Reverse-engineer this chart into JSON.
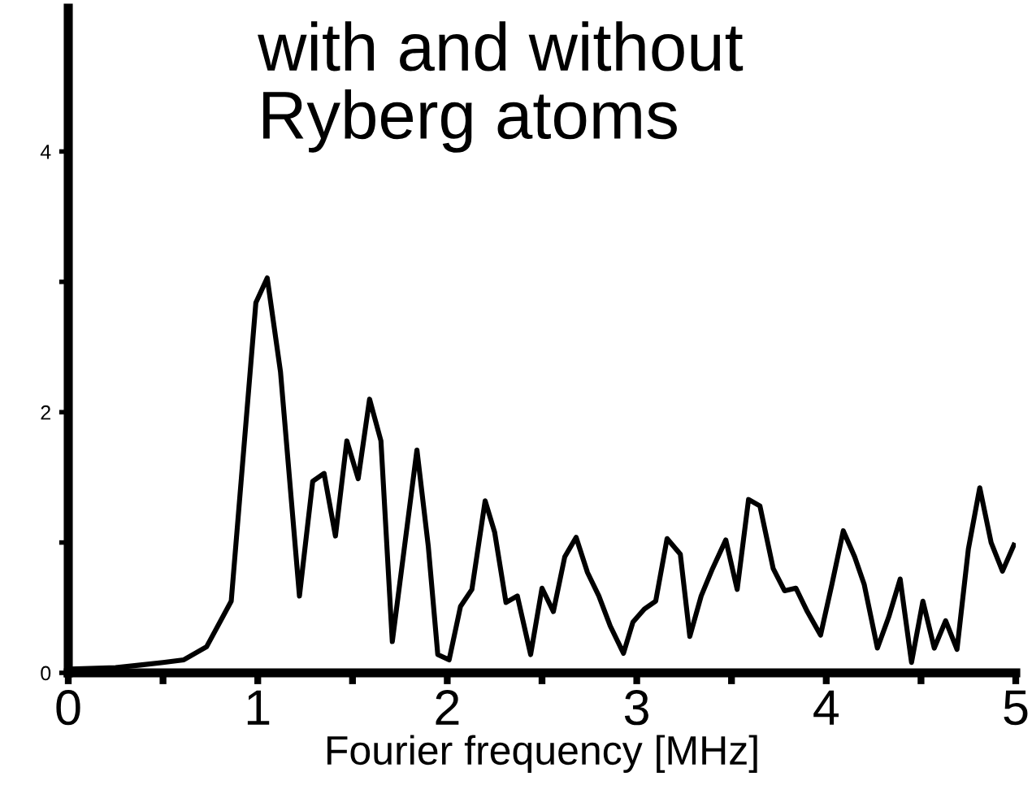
{
  "chart_data": {
    "type": "line",
    "xlabel": "Fourier frequency [MHz]",
    "annotations": [
      "with and without\nRyberg atoms"
    ],
    "x": [
      0.01,
      0.25,
      0.38,
      0.5,
      0.61,
      0.73,
      0.86,
      0.99,
      1.05,
      1.12,
      1.22,
      1.29,
      1.35,
      1.41,
      1.47,
      1.53,
      1.59,
      1.65,
      1.71,
      1.84,
      1.9,
      1.95,
      2.01,
      2.07,
      2.13,
      2.2,
      2.25,
      2.31,
      2.37,
      2.44,
      2.5,
      2.56,
      2.62,
      2.68,
      2.74,
      2.8,
      2.86,
      2.93,
      2.98,
      3.04,
      3.1,
      3.16,
      3.23,
      3.28,
      3.34,
      3.4,
      3.47,
      3.53,
      3.59,
      3.65,
      3.72,
      3.78,
      3.84,
      3.9,
      3.97,
      4.03,
      4.09,
      4.15,
      4.2,
      4.27,
      4.33,
      4.39,
      4.45,
      4.51,
      4.57,
      4.63,
      4.69,
      4.75,
      4.81,
      4.87,
      4.93,
      4.99
    ],
    "series": [
      {
        "color": "#000000",
        "values": [
          0.03,
          0.04,
          0.06,
          0.08,
          0.1,
          0.2,
          0.55,
          2.84,
          3.03,
          2.31,
          0.59,
          1.47,
          1.53,
          1.05,
          1.78,
          1.49,
          2.1,
          1.78,
          0.24,
          1.71,
          0.97,
          0.14,
          0.1,
          0.51,
          0.64,
          1.32,
          1.08,
          0.54,
          0.59,
          0.14,
          0.65,
          0.47,
          0.89,
          1.04,
          0.77,
          0.59,
          0.36,
          0.15,
          0.39,
          0.49,
          0.55,
          1.03,
          0.91,
          0.28,
          0.59,
          0.8,
          1.02,
          0.64,
          1.33,
          1.28,
          0.8,
          0.63,
          0.65,
          0.47,
          0.29,
          0.68,
          1.09,
          0.89,
          0.68,
          0.19,
          0.43,
          0.72,
          0.08,
          0.55,
          0.19,
          0.4,
          0.18,
          0.95,
          1.42,
          1.0,
          0.78,
          0.98
        ]
      }
    ],
    "xlim": [
      0,
      5
    ],
    "ylim": [
      0,
      5.1
    ],
    "xticks": [
      0,
      {
        "value": 0.5,
        "label": null
      },
      1,
      {
        "value": 1.5,
        "label": null
      },
      2,
      {
        "value": 2.5,
        "label": null
      },
      3,
      {
        "value": 3.5,
        "label": null
      },
      4,
      {
        "value": 4.5,
        "label": null
      },
      5
    ],
    "yticks": [
      0,
      {
        "value": 1,
        "label": null
      },
      2,
      {
        "value": 3,
        "label": null
      },
      4
    ],
    "grid": false,
    "legend": false,
    "line_style": "solid",
    "marker": "none"
  }
}
